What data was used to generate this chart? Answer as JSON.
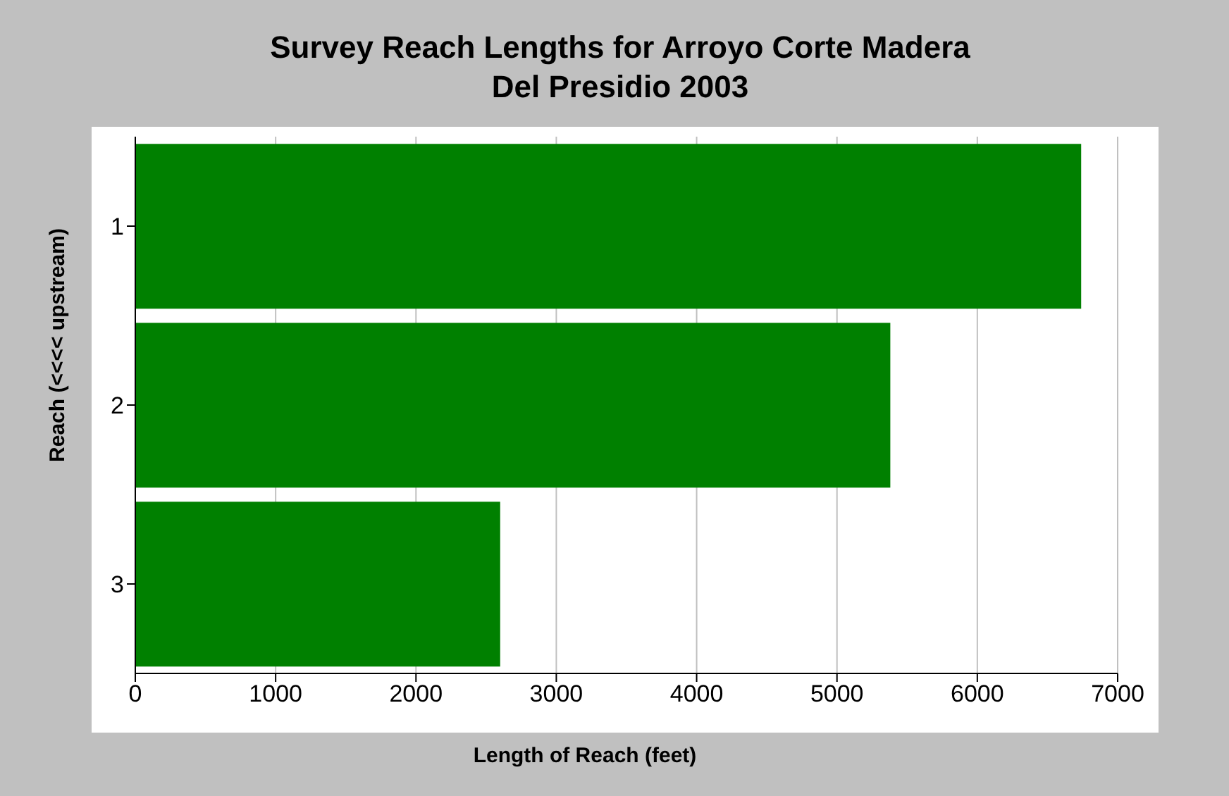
{
  "chart_data": {
    "type": "bar",
    "orientation": "horizontal",
    "title": "Survey Reach Lengths for Arroyo Corte Madera Del Presidio 2003",
    "xlabel": "Length of Reach (feet)",
    "ylabel": "Reach (<<<< upstream)",
    "categories": [
      "1",
      "2",
      "3"
    ],
    "values": [
      6740,
      5380,
      2600
    ],
    "color": "#008000",
    "xlim": [
      0,
      7000
    ],
    "xticks": [
      0,
      1000,
      2000,
      3000,
      4000,
      5000,
      6000,
      7000
    ],
    "grid": "x"
  }
}
